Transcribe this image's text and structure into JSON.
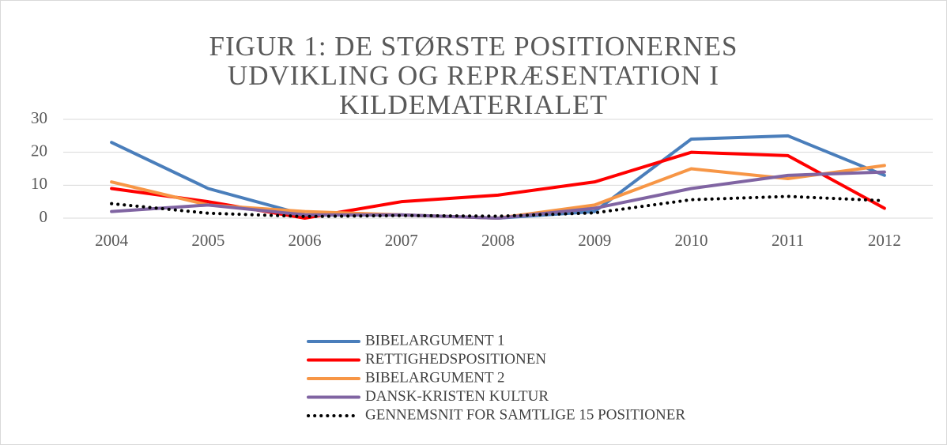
{
  "chart_data": {
    "type": "line",
    "title": "FIGUR 1: DE STØRSTE POSITIONERNES UDVIKLING OG REPRÆSENTATION I KILDEMATERIALET",
    "categories": [
      "2004",
      "2005",
      "2006",
      "2007",
      "2008",
      "2009",
      "2010",
      "2011",
      "2012"
    ],
    "series": [
      {
        "name": "BIBELARGUMENT 1",
        "color": "#4a7ebb",
        "style": "solid",
        "values": [
          23,
          9,
          1,
          1,
          0,
          2,
          24,
          25,
          13
        ]
      },
      {
        "name": "RETTIGHEDSPOSITIONEN",
        "color": "#ff0000",
        "style": "solid",
        "values": [
          9,
          5,
          0,
          5,
          7,
          11,
          20,
          19,
          3
        ]
      },
      {
        "name": "BIBELARGUMENT 2",
        "color": "#f79646",
        "style": "solid",
        "values": [
          11,
          4,
          2,
          1,
          0,
          4,
          15,
          12,
          16
        ]
      },
      {
        "name": "DANSK-KRISTEN KULTUR",
        "color": "#8064a2",
        "style": "solid",
        "values": [
          2,
          4,
          1,
          1,
          0,
          3,
          9,
          13,
          14
        ]
      },
      {
        "name": "GENNEMSNIT FOR SAMTLIGE 15 POSITIONER",
        "color": "#000000",
        "style": "dotted",
        "values": [
          4.4,
          1.5,
          0.5,
          0.8,
          0.6,
          1.6,
          5.6,
          6.6,
          5.3
        ]
      }
    ],
    "ylim": [
      0,
      30
    ],
    "yticks": [
      0,
      10,
      20,
      30
    ],
    "grid": true,
    "legend": "bottom"
  }
}
